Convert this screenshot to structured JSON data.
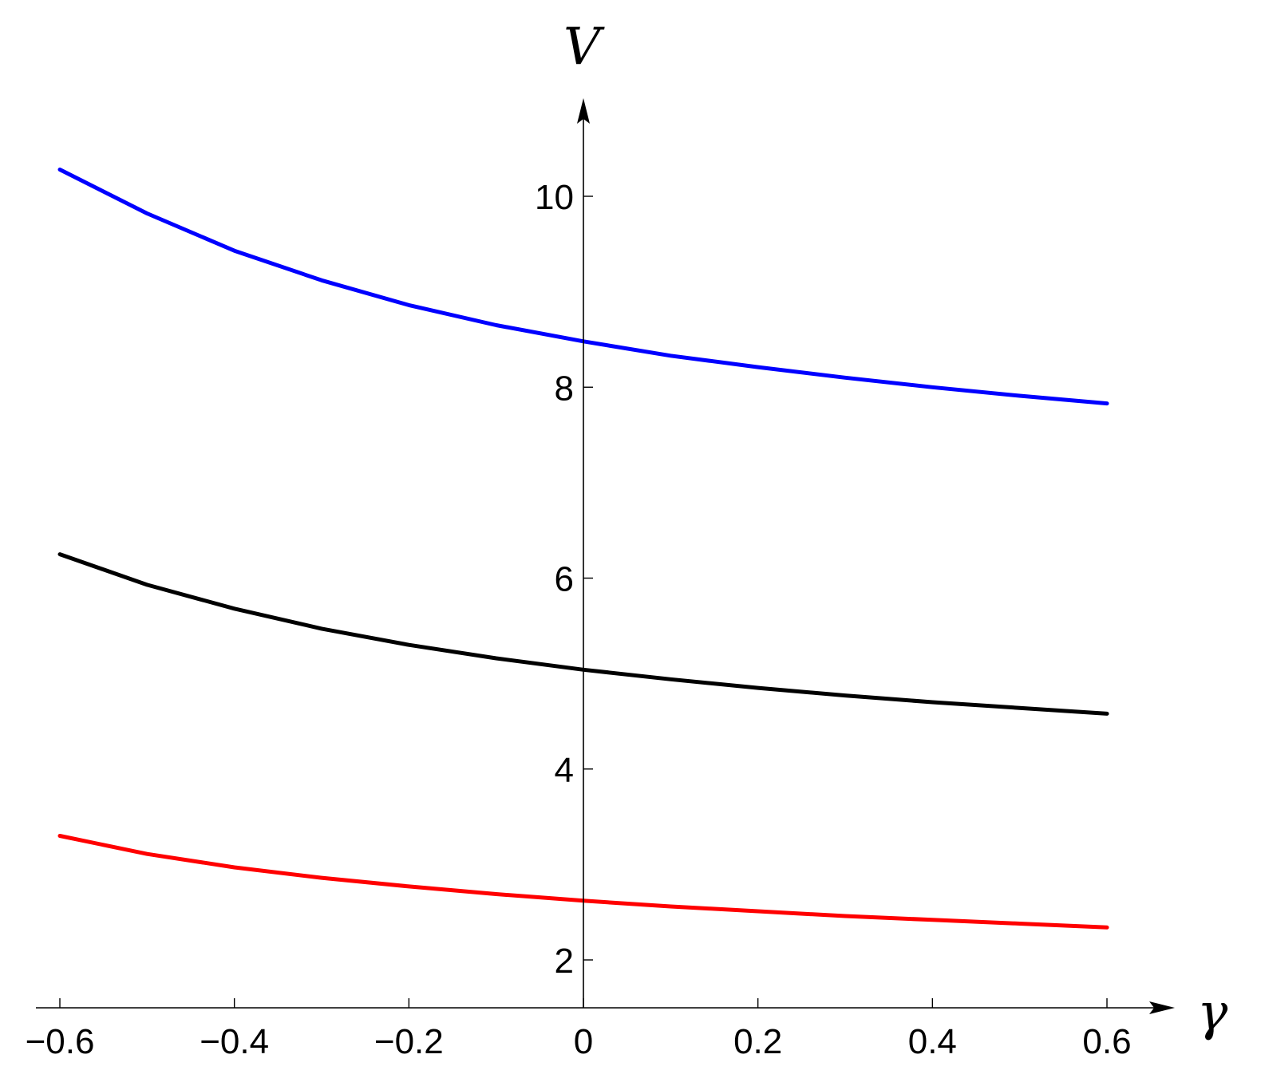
{
  "chart_data": {
    "type": "line",
    "xlabel": "γ",
    "ylabel": "V",
    "xlim": [
      -0.6,
      0.6
    ],
    "ylim": [
      1.5,
      11
    ],
    "x_ticks": [
      -0.6,
      -0.4,
      -0.2,
      0,
      0.2,
      0.4,
      0.6
    ],
    "x_tick_labels": [
      "−0.6",
      "−0.4",
      "−0.2",
      "0",
      "0.2",
      "0.4",
      "0.6"
    ],
    "y_ticks": [
      2,
      4,
      6,
      8,
      10
    ],
    "y_tick_labels": [
      "2",
      "4",
      "6",
      "8",
      "10"
    ],
    "grid": false,
    "x": [
      -0.6,
      -0.5,
      -0.4,
      -0.3,
      -0.2,
      -0.1,
      0,
      0.1,
      0.2,
      0.3,
      0.4,
      0.5,
      0.6
    ],
    "series": [
      {
        "color": "#0000ff",
        "values": [
          10.28,
          9.82,
          9.43,
          9.12,
          8.86,
          8.65,
          8.48,
          8.33,
          8.21,
          8.1,
          8.0,
          7.91,
          7.83
        ]
      },
      {
        "color": "#000000",
        "values": [
          6.25,
          5.93,
          5.68,
          5.47,
          5.3,
          5.16,
          5.04,
          4.94,
          4.85,
          4.77,
          4.7,
          4.64,
          4.58
        ]
      },
      {
        "color": "#ff0000",
        "values": [
          3.3,
          3.11,
          2.97,
          2.86,
          2.77,
          2.69,
          2.62,
          2.56,
          2.51,
          2.46,
          2.42,
          2.38,
          2.34
        ]
      }
    ]
  }
}
